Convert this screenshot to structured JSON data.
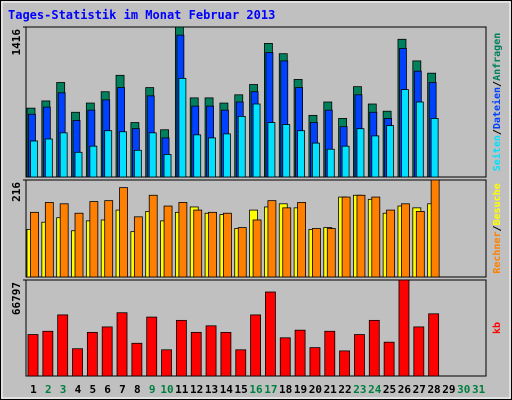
{
  "chart_data": [
    {
      "type": "bar",
      "title": "Tages-Statistik im Monat Februar 2013",
      "ylim": [
        0,
        1416
      ],
      "yticks": [
        1416
      ],
      "legend_separator": "/",
      "series": [
        {
          "name": "Anfragen",
          "color": "#00805c",
          "values": [
            650,
            718,
            892,
            611,
            698,
            805,
            960,
            514,
            844,
            446,
            1416,
            747,
            747,
            698,
            776,
            873,
            1261,
            1164,
            921,
            582,
            708,
            553,
            853,
            689,
            621,
            1300,
            1096,
            980,
            null,
            null,
            null
          ]
        },
        {
          "name": "Dateien",
          "color": "#0040ff",
          "values": [
            592,
            660,
            795,
            534,
            631,
            728,
            844,
            456,
            766,
            369,
            1339,
            669,
            669,
            631,
            708,
            805,
            1174,
            1096,
            844,
            514,
            631,
            475,
            776,
            611,
            553,
            1213,
            999,
            892,
            null,
            null,
            null
          ]
        },
        {
          "name": "Seiten",
          "color": "#00e0ff",
          "values": [
            340,
            359,
            417,
            233,
            291,
            437,
            427,
            252,
            417,
            213,
            931,
            398,
            369,
            407,
            572,
            689,
            514,
            495,
            437,
            320,
            262,
            291,
            456,
            388,
            485,
            825,
            708,
            553,
            null,
            null,
            null
          ]
        }
      ]
    },
    {
      "type": "bar",
      "ylim": [
        0,
        216
      ],
      "yticks": [
        216
      ],
      "legend_separator": "/",
      "series": [
        {
          "name": "Besuche",
          "color": "#ffff00",
          "values": [
            106,
            122,
            132,
            103,
            125,
            127,
            149,
            101,
            146,
            125,
            144,
            156,
            142,
            139,
            108,
            149,
            156,
            163,
            154,
            106,
            110,
            178,
            182,
            173,
            142,
            158,
            154,
            163,
            null,
            null,
            null
          ]
        },
        {
          "name": "Rechner",
          "color": "#ff8000",
          "values": [
            144,
            166,
            163,
            142,
            168,
            170,
            199,
            134,
            182,
            158,
            166,
            149,
            144,
            142,
            110,
            127,
            170,
            154,
            166,
            108,
            108,
            178,
            182,
            178,
            149,
            163,
            146,
            216,
            null,
            null,
            null
          ]
        }
      ]
    },
    {
      "type": "bar",
      "ylim": [
        0,
        66797
      ],
      "yticks": [
        66797
      ],
      "categories": [
        "1",
        "2",
        "3",
        "4",
        "5",
        "6",
        "7",
        "8",
        "9",
        "10",
        "11",
        "12",
        "13",
        "14",
        "15",
        "16",
        "17",
        "18",
        "19",
        "20",
        "21",
        "22",
        "23",
        "24",
        "25",
        "26",
        "27",
        "28",
        "29",
        "30",
        "31"
      ],
      "category_colors": [
        "#000000",
        "#008040",
        "#008040",
        "#000000",
        "#000000",
        "#000000",
        "#000000",
        "#000000",
        "#008040",
        "#008040",
        "#000000",
        "#000000",
        "#000000",
        "#000000",
        "#000000",
        "#008040",
        "#008040",
        "#000000",
        "#000000",
        "#000000",
        "#000000",
        "#000000",
        "#008040",
        "#008040",
        "#000000",
        "#000000",
        "#000000",
        "#000000",
        "#000000",
        "#008040",
        "#008040"
      ],
      "series": [
        {
          "name": "kb",
          "color": "#ff0000",
          "values": [
            28842,
            31119,
            42504,
            18975,
            30360,
            34155,
            44022,
            22770,
            40986,
            18216,
            38709,
            30360,
            34914,
            30360,
            18216,
            42504,
            58443,
            26565,
            31878,
            19734,
            31119,
            17457,
            28842,
            38709,
            23529,
            66797,
            34155,
            43263,
            null,
            null,
            null
          ]
        }
      ]
    }
  ]
}
